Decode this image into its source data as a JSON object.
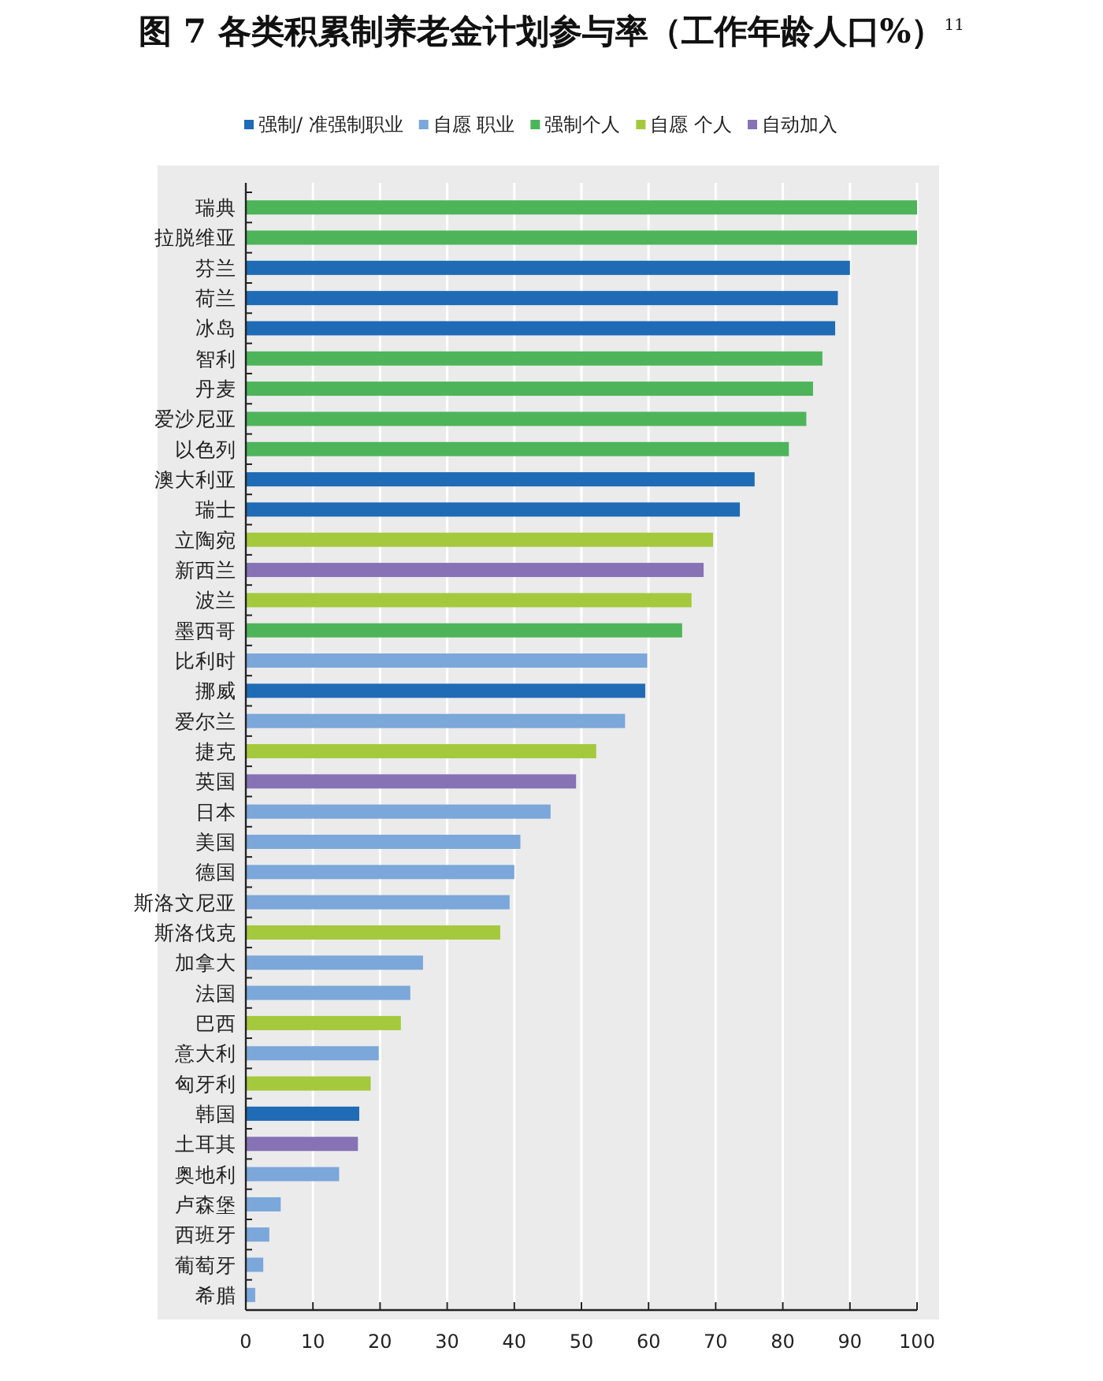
{
  "chart_data": {
    "type": "bar",
    "orientation": "horizontal",
    "stacked": true,
    "title": "图 7 各类积累制养老金计划参与率（工作年龄人口%）$^{11}$",
    "categories": [
      "瑞典",
      "拉脱维亚",
      "芬兰",
      "荷兰",
      "冰岛",
      "智利",
      "丹麦",
      "爱沙尼亚",
      "以色列",
      "澳大利亚",
      "瑞士",
      "立陶宛",
      "新西兰",
      "波兰",
      "墨西哥",
      "比利时",
      "挪威",
      "爱尔兰",
      "捷克",
      "英国",
      "日本",
      "美国",
      "德国",
      "斯洛文尼亚",
      "斯洛伐克",
      "加拿大",
      "法国",
      "巴西",
      "意大利",
      "匈牙利",
      "韩国",
      "土耳其",
      "奥地利",
      "卢森堡",
      "西班牙",
      "葡萄牙",
      "希腊"
    ],
    "series": [
      {
        "name": "强制/ 准强制职业",
        "color": "#1f6bb5",
        "values": [
          null,
          null,
          90,
          88.2,
          87.8,
          null,
          null,
          null,
          null,
          75.8,
          73.6,
          null,
          null,
          null,
          null,
          null,
          59.5,
          null,
          null,
          null,
          null,
          null,
          null,
          null,
          null,
          null,
          null,
          null,
          null,
          null,
          16.9,
          null,
          null,
          null,
          null,
          null,
          null
        ]
      },
      {
        "name": "自愿 职业",
        "color": "#7ba7da",
        "values": [
          null,
          null,
          null,
          null,
          null,
          null,
          null,
          null,
          null,
          null,
          null,
          null,
          null,
          null,
          null,
          59.8,
          null,
          56.5,
          null,
          null,
          45.4,
          40.9,
          40,
          39.3,
          null,
          26.4,
          24.5,
          null,
          19.8,
          null,
          null,
          null,
          13.9,
          5.2,
          3.5,
          2.6,
          1.4
        ]
      },
      {
        "name": "强制个人",
        "color": "#4db45a",
        "values": [
          100,
          100,
          null,
          null,
          null,
          85.9,
          84.5,
          83.5,
          80.9,
          null,
          null,
          null,
          null,
          null,
          65,
          null,
          null,
          null,
          null,
          null,
          null,
          null,
          null,
          null,
          null,
          null,
          null,
          null,
          null,
          null,
          null,
          null,
          null,
          null,
          null,
          null,
          null
        ]
      },
      {
        "name": "自愿 个人",
        "color": "#a4c93c",
        "values": [
          null,
          null,
          null,
          null,
          null,
          null,
          null,
          null,
          null,
          null,
          null,
          69.6,
          null,
          66.4,
          null,
          null,
          null,
          null,
          52.2,
          null,
          null,
          null,
          null,
          null,
          37.9,
          null,
          null,
          23.1,
          null,
          18.6,
          null,
          null,
          null,
          null,
          null,
          null,
          null
        ]
      },
      {
        "name": "自动加入",
        "color": "#8672b5",
        "values": [
          null,
          null,
          null,
          null,
          null,
          null,
          null,
          null,
          null,
          null,
          null,
          null,
          68.2,
          null,
          null,
          null,
          null,
          null,
          null,
          49.2,
          null,
          null,
          null,
          null,
          null,
          null,
          null,
          null,
          null,
          null,
          null,
          16.7,
          null,
          null,
          null,
          null,
          null
        ]
      }
    ],
    "xlim": [
      0,
      100
    ],
    "xticks": [
      0,
      10,
      20,
      30,
      40,
      50,
      60,
      70,
      80,
      90,
      100
    ],
    "grid": "x",
    "legend": "top"
  }
}
